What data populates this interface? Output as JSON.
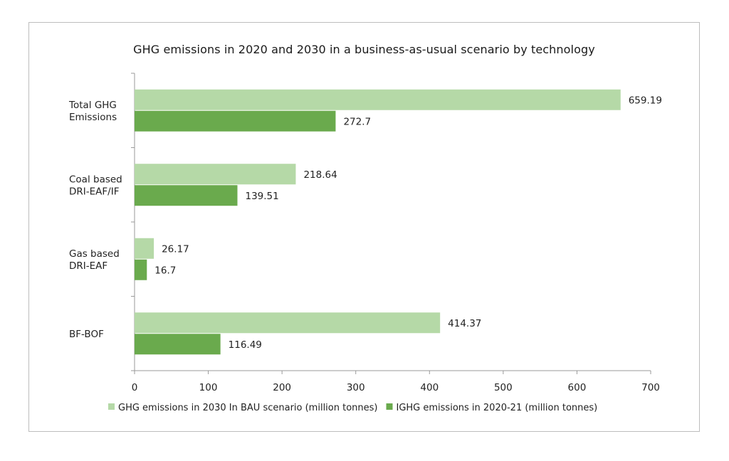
{
  "chart_data": {
    "type": "bar",
    "orientation": "horizontal",
    "title": "GHG emissions in 2020 and 2030 in a business-as-usual scenario by technology",
    "categories": [
      [
        "Total GHG",
        "Emissions"
      ],
      [
        "Coal based",
        "DRI-EAF/IF"
      ],
      [
        "Gas based",
        "DRI-EAF"
      ],
      [
        "BF-BOF"
      ]
    ],
    "series": [
      {
        "name": "GHG emissions in 2030 In BAU scenario (million tonnes)",
        "color": "#b5d9a7",
        "values": [
          659.19,
          218.64,
          26.17,
          414.37
        ],
        "labels": [
          "659.19",
          "218.64",
          "26.17",
          "414.37"
        ]
      },
      {
        "name": "IGHG emissions in 2020-21 (million tonnes)",
        "color": "#6aaa4d",
        "values": [
          272.7,
          139.51,
          16.7,
          116.49
        ],
        "labels": [
          "272.7",
          "139.51",
          "16.7",
          "116.49"
        ]
      }
    ],
    "xlim": [
      0,
      700
    ],
    "xticks": [
      "0",
      "100",
      "200",
      "300",
      "400",
      "500",
      "600",
      "700"
    ],
    "grid": false,
    "legend_position": "bottom"
  }
}
